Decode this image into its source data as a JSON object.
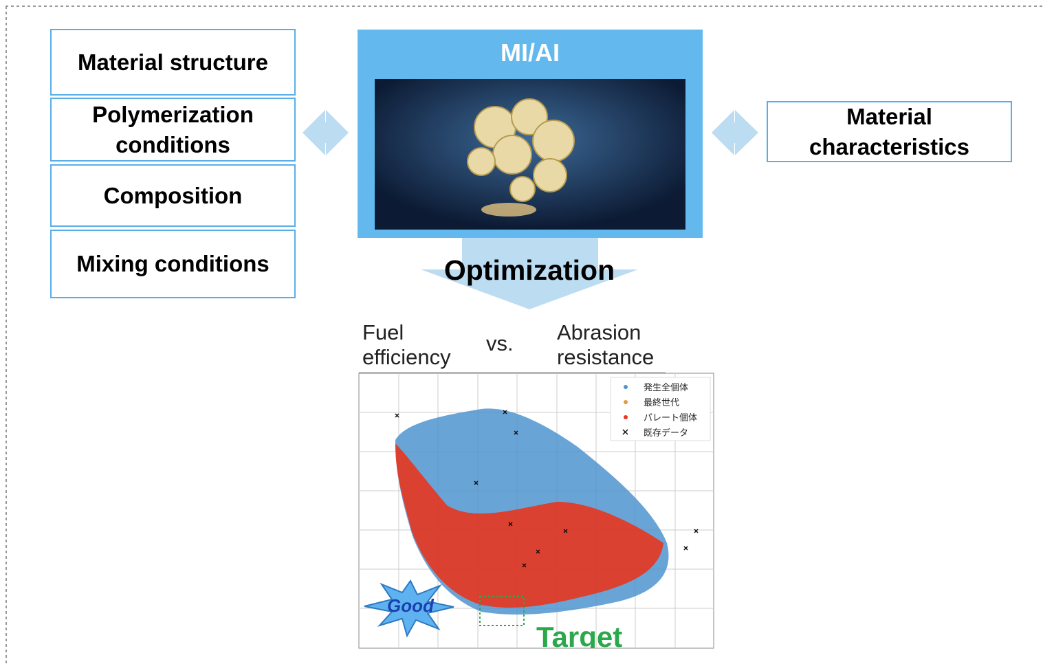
{
  "inputs": [
    "Material structure",
    "Polymerization conditions",
    "Composition",
    "Mixing conditions"
  ],
  "engine": {
    "title": "MI/AI"
  },
  "output": "Material characteristics",
  "arrow_label": "Optimization",
  "plot": {
    "header": {
      "left": "Fuel efficiency",
      "middle": "vs.",
      "right": "Abrasion resistance"
    },
    "legend": [
      "発生全個体",
      "最終世代",
      "パレート個体",
      "既存データ"
    ],
    "good": "Good",
    "target": "Target"
  }
}
